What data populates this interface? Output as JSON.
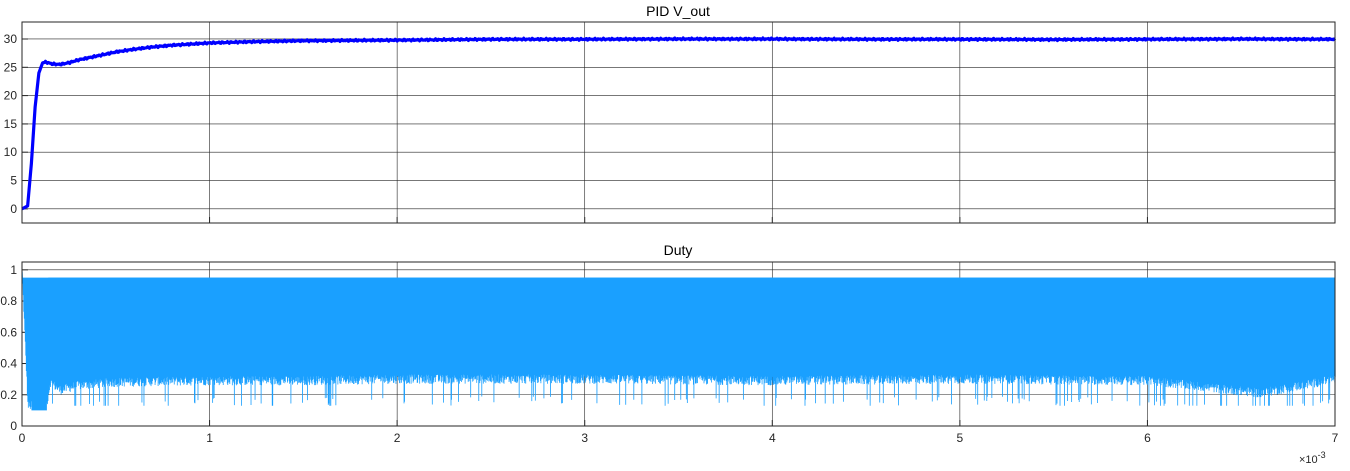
{
  "chart_data": [
    {
      "type": "line",
      "title": "PID V_out",
      "xlabel": "",
      "ylabel": "",
      "x_exponent_label": "× 10^-3",
      "xlim": [
        0,
        7
      ],
      "ylim": [
        -2.5,
        33
      ],
      "x_ticks": [
        "0",
        "1",
        "2",
        "3",
        "4",
        "5",
        "6",
        "7"
      ],
      "y_ticks": [
        "0",
        "5",
        "10",
        "15",
        "20",
        "25",
        "30"
      ],
      "y_tick_values": [
        0,
        5,
        10,
        15,
        20,
        25,
        30
      ],
      "grid": true,
      "series": [
        {
          "color": "#0000ff",
          "x": [
            0,
            0.03,
            0.05,
            0.07,
            0.09,
            0.11,
            0.13,
            0.16,
            0.2,
            0.25,
            0.3,
            0.4,
            0.5,
            0.6,
            0.7,
            0.8,
            1.0,
            1.2,
            1.5,
            2.0,
            2.5,
            3.0,
            3.5,
            4.0,
            4.5,
            5.0,
            5.5,
            6.0,
            6.5,
            7.0
          ],
          "y": [
            0,
            0.5,
            8,
            18,
            24,
            25.8,
            25.9,
            25.6,
            25.5,
            25.8,
            26.3,
            27.0,
            27.7,
            28.2,
            28.6,
            28.9,
            29.3,
            29.5,
            29.7,
            29.8,
            29.95,
            29.95,
            30.0,
            30.0,
            29.95,
            29.95,
            29.9,
            29.95,
            30.0,
            29.95
          ]
        }
      ]
    },
    {
      "type": "line",
      "title": "Duty",
      "xlabel": "",
      "ylabel": "",
      "x_exponent_label": "× 10^-3",
      "xlim": [
        0,
        7
      ],
      "ylim": [
        0,
        1.05
      ],
      "x_ticks": [
        "0",
        "1",
        "2",
        "3",
        "4",
        "5",
        "6",
        "7"
      ],
      "y_ticks": [
        "0",
        "0.2",
        "0.4",
        "0.6",
        "0.8",
        "1"
      ],
      "y_tick_values": [
        0,
        0.2,
        0.4,
        0.6,
        0.8,
        1.0
      ],
      "grid": true,
      "series": [
        {
          "color": "#1aa0ff",
          "upper": 0.95,
          "lower_envelope_x": [
            0,
            0.03,
            0.05,
            0.13,
            0.15,
            0.2,
            0.3,
            0.5,
            1.0,
            1.5,
            2.0,
            3.0,
            4.0,
            5.0,
            6.0,
            6.6,
            7.0
          ],
          "lower_envelope_y": [
            0.95,
            0.1,
            0.1,
            0.1,
            0.25,
            0.2,
            0.23,
            0.25,
            0.26,
            0.26,
            0.27,
            0.27,
            0.26,
            0.27,
            0.26,
            0.18,
            0.27
          ]
        }
      ]
    }
  ]
}
